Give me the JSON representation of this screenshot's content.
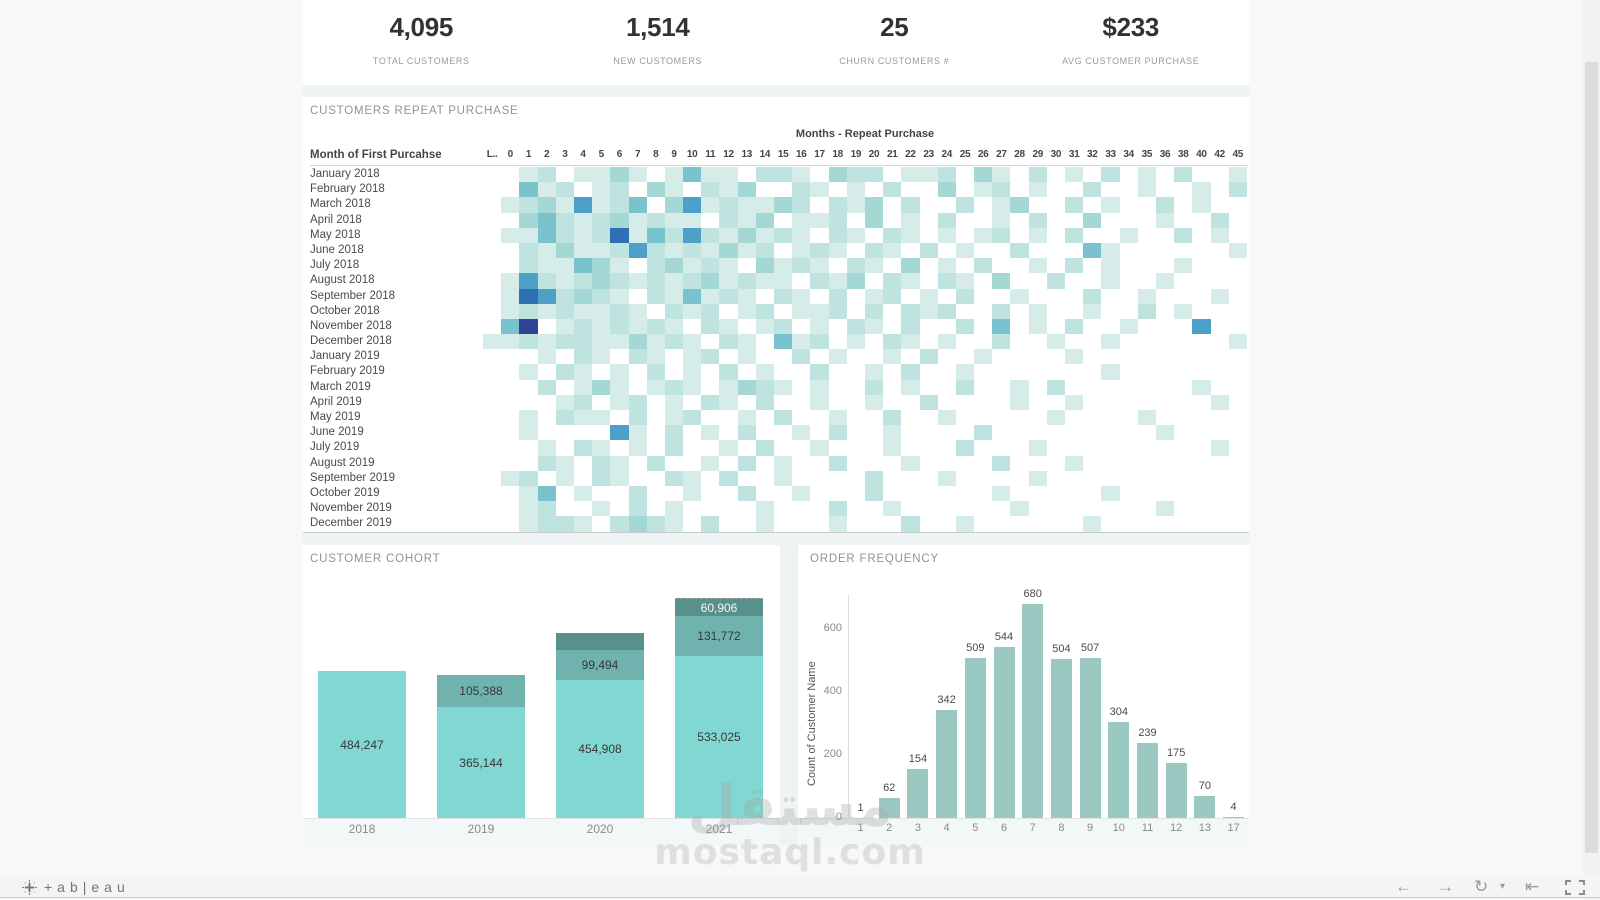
{
  "ui": {
    "kpis": [
      {
        "value": "4,095",
        "label": "TOTAL CUSTOMERS"
      },
      {
        "value": "1,514",
        "label": "NEW CUSTOMERS"
      },
      {
        "value": "25",
        "label": "CHURN CUSTOMERS #"
      },
      {
        "value": "$233",
        "label": "AVG CUSTOMER PURCHASE"
      }
    ],
    "watermark": {
      "line1": "مستقل",
      "line2": "mostaql.com"
    },
    "footer": {
      "brand_text": "+ab|eau",
      "icons": [
        {
          "name": "undo-icon",
          "glyph": "←",
          "x": 1395
        },
        {
          "name": "redo-icon",
          "glyph": "→",
          "x": 1437
        },
        {
          "name": "replay-icon",
          "glyph": "↻",
          "x": 1474
        },
        {
          "name": "replay-dropdown-icon",
          "glyph": "▾",
          "x": 1500
        },
        {
          "name": "reset-icon",
          "glyph": "⇤",
          "x": 1525
        }
      ]
    }
  },
  "chart_data": [
    {
      "type": "heatmap",
      "title": "CUSTOMERS REPEAT PURCHASE",
      "x_axis_title": "Months - Repeat Purchase",
      "row_header": "Month of First Purcahse",
      "columns": [
        "L..",
        "0",
        "1",
        "2",
        "3",
        "4",
        "5",
        "6",
        "7",
        "8",
        "9",
        "10",
        "11",
        "12",
        "13",
        "14",
        "15",
        "16",
        "17",
        "18",
        "19",
        "20",
        "21",
        "22",
        "23",
        "24",
        "25",
        "26",
        "27",
        "28",
        "29",
        "30",
        "31",
        "32",
        "33",
        "34",
        "35",
        "36",
        "38",
        "40",
        "42",
        "45"
      ],
      "palette": {
        "1": "#d5ece8",
        "2": "#bfe3de",
        "3": "#a3d8d5",
        "4": "#79c2ce",
        "5": "#4da0c8",
        "6": "#2f6fb3",
        "7": "#2f4495"
      },
      "note": "cells encode approximate mark intensity 0(empty)-7(darkest)",
      "rows": [
        {
          "label": "January 2018",
          "cells": "001201131014110221032201120310201020102001"
        },
        {
          "label": "February 2018",
          "cells": "004120120310213002101020030120100200100102"
        },
        {
          "label": "March 2018",
          "cells": "012315124035121132021302002013002010020100"
        },
        {
          "label": "April 2018",
          "cells": "003421231211021301120301020010200300010020"
        },
        {
          "label": "May 2018",
          "cells": "011421261425213121021021010120102001002010"
        },
        {
          "label": "June 2018",
          "cells": "002131125212131201210210201002000410000001"
        },
        {
          "label": "July 2018",
          "cells": "002114310231210312102103010200102010001000"
        },
        {
          "label": "August 2018",
          "cells": "015212321212312110213021021030020010010000"
        },
        {
          "label": "September 2018",
          "cells": "016523210214121021020120102001000200100010"
        },
        {
          "label": "October 2018",
          "cells": "012121121021201201120202120020100100201000"
        },
        {
          "label": "November 2018",
          "cells": "047012121210210120102102002040102001000500"
        },
        {
          "label": "December 2018",
          "cells": "112122113121021041201021010020010010000001"
        },
        {
          "label": "January 2019",
          "cells": "000102102101201002010010200100001000000000"
        },
        {
          "label": "February 2019",
          "cells": "001021010201020100200102001000000010000000"
        },
        {
          "label": "March 2019",
          "cells": "000201310121013210100201002001020000000100"
        },
        {
          "label": "April 2019",
          "cells": "000012012010210200100100200001001000000010"
        },
        {
          "label": "May 2019",
          "cells": "001021102012001020010020010000010000100000"
        },
        {
          "label": "June 2019",
          "cells": "001000051020102001020010000200000000010000"
        },
        {
          "label": "July 2019",
          "cells": "000102101020010200100010002000100000000010"
        },
        {
          "label": "August 2019",
          "cells": "000210210200102010020001000020001000000000"
        },
        {
          "label": "September 2019",
          "cells": "012010210021020010000200010000100000000000"
        },
        {
          "label": "October 2019",
          "cells": "001401002001002001000200000010000010000000"
        },
        {
          "label": "November 2019",
          "cells": "001200102010000100020010000001000000010000"
        },
        {
          "label": "December 2019",
          "cells": "001221023210200100010002001000000100000000"
        }
      ]
    },
    {
      "type": "stacked_bar",
      "title": "CUSTOMER COHORT",
      "categories": [
        "2018",
        "2019",
        "2020",
        "2021"
      ],
      "colors": {
        "light": "#81d7d1",
        "mid": "#70b3ae",
        "dark": "#58908b"
      },
      "bars": [
        {
          "year": "2018",
          "segments": [
            {
              "label": "484,247",
              "value": 484247,
              "tone": "light"
            }
          ]
        },
        {
          "year": "2019",
          "segments": [
            {
              "label": "105,388",
              "value": 105388,
              "tone": "mid"
            },
            {
              "label": "365,144",
              "value": 365144,
              "tone": "light"
            }
          ]
        },
        {
          "year": "2020",
          "segments": [
            {
              "label": "",
              "value": null,
              "tone": "dark"
            },
            {
              "label": "99,494",
              "value": 99494,
              "tone": "mid"
            },
            {
              "label": "454,908",
              "value": 454908,
              "tone": "light"
            }
          ]
        },
        {
          "year": "2021",
          "segments": [
            {
              "label": "60,906",
              "value": 60906,
              "tone": "dark",
              "dotted_top": true
            },
            {
              "label": "131,772",
              "value": 131772,
              "tone": "mid"
            },
            {
              "label": "533,025",
              "value": 533025,
              "tone": "light"
            }
          ]
        }
      ]
    },
    {
      "type": "bar",
      "title": "ORDER FREQUENCY",
      "ylabel": "Count of Customer Name",
      "yticks": [
        0,
        200,
        400,
        600
      ],
      "ylim": [
        0,
        708
      ],
      "bar_color": "#9cc8c2",
      "categories": [
        "1",
        "2",
        "3",
        "4",
        "5",
        "6",
        "7",
        "8",
        "9",
        "10",
        "11",
        "12",
        "13",
        "17"
      ],
      "values": [
        1,
        62,
        154,
        342,
        509,
        544,
        680,
        504,
        507,
        304,
        239,
        175,
        70,
        4
      ]
    }
  ]
}
